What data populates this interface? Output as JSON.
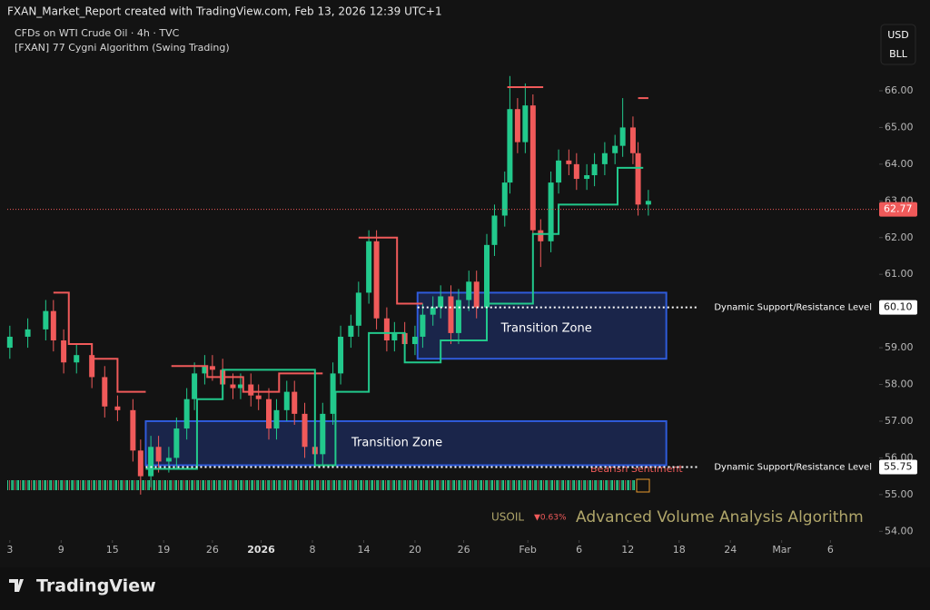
{
  "header": {
    "credit": "FXAN_Market_Report created with TradingView.com, Feb 13, 2026 12:39 UTC+1",
    "brand": "TradingView"
  },
  "chart_data": {
    "type": "candlestick",
    "title": "CFDs on WTI Crude Oil · 4h · TVC",
    "subtitle": "[FXAN] 77 Cygni Algorithm (Swing Trading)",
    "currency": "USD",
    "unit": "BLL",
    "colors": {
      "up": "#22c98c",
      "down": "#f05a5a"
    },
    "xlim": [
      0,
      340
    ],
    "ylim": [
      53.76,
      67.78
    ],
    "yticks": [
      {
        "value": 54,
        "label": "54.00"
      },
      {
        "value": 55,
        "label": "55.00"
      },
      {
        "value": 56,
        "label": "56.00"
      },
      {
        "value": 57,
        "label": "57.00"
      },
      {
        "value": 58,
        "label": "58.00"
      },
      {
        "value": 59,
        "label": "59.00"
      },
      {
        "value": 60,
        "label": "60.00"
      },
      {
        "value": 61,
        "label": "61.00"
      },
      {
        "value": 62,
        "label": "62.00"
      },
      {
        "value": 63,
        "label": "63.00"
      },
      {
        "value": 64,
        "label": "64.00"
      },
      {
        "value": 65,
        "label": "65.00"
      },
      {
        "value": 66,
        "label": "66.00"
      }
    ],
    "xticks": [
      {
        "value": 1,
        "label": "3"
      },
      {
        "value": 21,
        "label": "9"
      },
      {
        "value": 41,
        "label": "15"
      },
      {
        "value": 61,
        "label": "19"
      },
      {
        "value": 80,
        "label": "26"
      },
      {
        "value": 99,
        "label": "2026"
      },
      {
        "value": 119,
        "label": "8"
      },
      {
        "value": 139,
        "label": "14"
      },
      {
        "value": 159,
        "label": "20"
      },
      {
        "value": 178,
        "label": "26"
      },
      {
        "value": 203,
        "label": "Feb"
      },
      {
        "value": 223,
        "label": "6"
      },
      {
        "value": 242,
        "label": "12"
      },
      {
        "value": 262,
        "label": "18"
      },
      {
        "value": 282,
        "label": "24"
      },
      {
        "value": 302,
        "label": "Mar"
      },
      {
        "value": 321,
        "label": "6"
      }
    ],
    "x": [
      1,
      8,
      15,
      18,
      22,
      27,
      33,
      38,
      43,
      49,
      52,
      56,
      59,
      63,
      66,
      70,
      73,
      77,
      80,
      84,
      88,
      91,
      95,
      98,
      102,
      105,
      109,
      112,
      116,
      120,
      123,
      127,
      130,
      134,
      137,
      141,
      144,
      148,
      151,
      155,
      159,
      162,
      166,
      169,
      173,
      176,
      180,
      183,
      187,
      190,
      194,
      196,
      199,
      202,
      205,
      208,
      212,
      215,
      219,
      222,
      226,
      229,
      233,
      237,
      240,
      244,
      246,
      250
    ],
    "open": [
      59.0,
      59.3,
      59.5,
      60.0,
      59.2,
      58.6,
      58.8,
      58.2,
      57.4,
      57.3,
      56.2,
      55.5,
      56.3,
      55.9,
      56.0,
      56.8,
      57.6,
      58.3,
      58.5,
      58.4,
      58.0,
      57.9,
      58.0,
      57.7,
      57.6,
      56.8,
      57.3,
      57.8,
      57.2,
      56.3,
      56.1,
      57.2,
      58.3,
      59.3,
      59.6,
      60.5,
      61.9,
      59.8,
      59.2,
      59.4,
      59.1,
      59.3,
      59.9,
      60.1,
      60.4,
      59.4,
      60.3,
      60.8,
      60.1,
      61.8,
      62.6,
      63.5,
      65.5,
      64.6,
      65.6,
      62.2,
      61.9,
      63.5,
      64.1,
      64.0,
      63.6,
      63.7,
      64.0,
      64.3,
      64.5,
      65.0,
      64.3,
      62.9
    ],
    "high": [
      59.6,
      59.8,
      60.3,
      60.3,
      59.5,
      59.1,
      59.1,
      58.5,
      57.7,
      57.6,
      56.5,
      56.6,
      56.6,
      56.3,
      57.1,
      57.9,
      58.6,
      58.8,
      58.8,
      58.7,
      58.3,
      58.3,
      58.3,
      58.0,
      57.9,
      57.6,
      58.1,
      58.1,
      57.5,
      56.6,
      57.5,
      58.6,
      59.6,
      59.9,
      60.8,
      62.2,
      62.2,
      60.1,
      59.7,
      59.7,
      59.6,
      60.2,
      60.4,
      60.7,
      60.7,
      60.6,
      61.1,
      61.1,
      62.1,
      62.9,
      63.8,
      66.4,
      65.8,
      66.2,
      65.9,
      62.5,
      63.8,
      64.4,
      64.4,
      64.3,
      64.0,
      64.3,
      64.6,
      64.8,
      65.8,
      65.3,
      64.6,
      63.3
    ],
    "low": [
      58.7,
      59.0,
      59.2,
      58.9,
      58.3,
      58.3,
      57.9,
      57.1,
      57.0,
      55.9,
      55.0,
      55.2,
      55.6,
      55.6,
      55.7,
      56.5,
      57.3,
      58.0,
      58.1,
      57.7,
      57.6,
      57.6,
      57.4,
      57.3,
      56.5,
      56.5,
      57.0,
      56.9,
      56.0,
      55.8,
      55.8,
      56.9,
      58.0,
      59.0,
      59.3,
      60.2,
      59.5,
      58.9,
      58.9,
      58.8,
      58.8,
      59.0,
      59.6,
      59.8,
      59.1,
      59.1,
      60.0,
      59.8,
      59.8,
      61.5,
      62.3,
      63.2,
      64.3,
      64.3,
      61.9,
      61.2,
      61.6,
      63.2,
      63.7,
      63.3,
      63.3,
      63.4,
      63.7,
      64.0,
      64.2,
      64.0,
      62.6,
      62.6
    ],
    "close": [
      59.3,
      59.5,
      60.0,
      59.2,
      58.6,
      58.8,
      58.2,
      57.4,
      57.3,
      56.2,
      55.5,
      56.3,
      55.9,
      56.0,
      56.8,
      57.6,
      58.3,
      58.5,
      58.4,
      58.0,
      57.9,
      58.0,
      57.7,
      57.6,
      56.8,
      57.3,
      57.8,
      57.2,
      56.3,
      56.1,
      57.2,
      58.3,
      59.3,
      59.6,
      60.5,
      61.9,
      59.8,
      59.2,
      59.4,
      59.1,
      59.3,
      59.9,
      60.1,
      60.4,
      59.4,
      60.3,
      60.8,
      60.1,
      61.8,
      62.6,
      63.5,
      65.5,
      64.6,
      65.6,
      62.2,
      61.9,
      63.5,
      64.1,
      64.0,
      63.6,
      63.7,
      64.0,
      64.3,
      64.5,
      65.0,
      64.3,
      62.9,
      63.0
    ],
    "series": [
      {
        "color": "#f05a5a",
        "x": [
          18,
          24,
          24,
          33,
          33,
          43,
          43,
          54,
          59,
          64,
          78,
          78,
          92,
          92,
          106,
          106,
          123,
          130,
          137,
          152,
          152,
          162,
          180,
          195,
          209,
          230,
          246,
          250
        ],
        "values": [
          60.5,
          60.5,
          59.1,
          59.1,
          58.7,
          58.7,
          57.8,
          57.8,
          null,
          58.5,
          58.5,
          58.2,
          58.2,
          57.8,
          57.8,
          58.3,
          58.3,
          null,
          62.0,
          62.0,
          60.2,
          60.2,
          null,
          66.1,
          66.1,
          null,
          65.8,
          65.8
        ]
      },
      {
        "color": "#22c98c",
        "x": [
          54,
          74,
          74,
          84,
          84,
          120,
          120,
          128,
          128,
          141,
          141,
          155,
          155,
          169,
          169,
          187,
          187,
          205,
          205,
          215,
          215,
          238,
          238,
          248
        ],
        "values": [
          55.7,
          55.7,
          57.6,
          57.6,
          58.4,
          58.4,
          55.8,
          55.8,
          57.8,
          57.8,
          59.4,
          59.4,
          58.6,
          58.6,
          59.2,
          59.2,
          60.2,
          60.2,
          62.1,
          62.1,
          62.9,
          62.9,
          63.9,
          63.9
        ]
      }
    ],
    "zones": [
      {
        "label": "Transition Zone",
        "x": [
          54,
          257
        ],
        "y": [
          55.8,
          57.0
        ]
      },
      {
        "label": "Transition Zone",
        "x": [
          160,
          257
        ],
        "y": [
          58.7,
          60.5
        ]
      }
    ],
    "levels": [
      {
        "label": "Dynamic Support/Resistance Level",
        "value": 60.1,
        "value_label": "60.10",
        "start": 160
      },
      {
        "label": "Dynamic Support/Resistance Level",
        "value": 55.75,
        "value_label": "55.75",
        "start": 54
      }
    ],
    "last_price": 62.77,
    "annotations": {
      "sentiment": "Bearish Sentiment",
      "symbol": "USOIL",
      "change": "▼0.63%",
      "indicator": "Advanced Volume Analysis Algorithm"
    }
  }
}
